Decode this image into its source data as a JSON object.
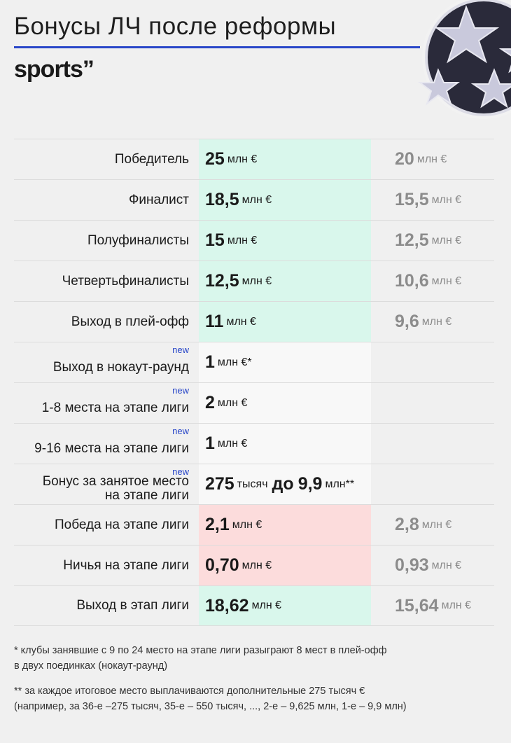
{
  "header": {
    "title": "Бонусы ЛЧ после реформы",
    "brand": "sports”",
    "accent": "#2846c8"
  },
  "rows": [
    {
      "label": "Победитель",
      "new_value": "25",
      "new_unit": "млн €",
      "old_value": "20",
      "old_unit": "млн €",
      "bg": "green"
    },
    {
      "label": "Финалист",
      "new_value": "18,5",
      "new_unit": "млн €",
      "old_value": "15,5",
      "old_unit": "млн €",
      "bg": "green"
    },
    {
      "label": "Полуфиналисты",
      "new_value": "15",
      "new_unit": "млн €",
      "old_value": "12,5",
      "old_unit": "млн €",
      "bg": "green"
    },
    {
      "label": "Четвертьфиналисты",
      "new_value": "12,5",
      "new_unit": "млн €",
      "old_value": "10,6",
      "old_unit": "млн €",
      "bg": "green"
    },
    {
      "label": "Выход в плей-офф",
      "new_value": "11",
      "new_unit": "млн €",
      "old_value": "9,6",
      "old_unit": "млн €",
      "bg": "green"
    },
    {
      "label": "Выход в нокаут-раунд",
      "tag": "new",
      "new_value": "1",
      "new_unit": "млн €*",
      "bg": "white"
    },
    {
      "label": "1-8 места на этапе лиги",
      "tag": "new",
      "new_value": "2",
      "new_unit": "млн €",
      "bg": "white"
    },
    {
      "label": "9-16 места на этапе лиги",
      "tag": "new",
      "new_value": "1",
      "new_unit": "млн €",
      "bg": "white"
    },
    {
      "label_line1": "Бонус за занятое место",
      "label_line2": "на этапе лиги",
      "tag": "new",
      "new_value": "275",
      "new_unit": "тысяч",
      "new_mid": "до",
      "new_value2": "9,9",
      "new_unit2": "млн**",
      "bg": "white"
    },
    {
      "label": "Победа на этапе лиги",
      "new_value": "2,1",
      "new_unit": "млн €",
      "old_value": "2,8",
      "old_unit": "млн €",
      "bg": "pink"
    },
    {
      "label": "Ничья на этапе лиги",
      "new_value": "0,70",
      "new_unit": "млн €",
      "old_value": "0,93",
      "old_unit": "млн €",
      "bg": "pink"
    },
    {
      "label": "Выход в этап лиги",
      "new_value": "18,62",
      "new_unit": "млн €",
      "old_value": "15,64",
      "old_unit": "млн €",
      "bg": "green"
    }
  ],
  "notes": {
    "note1_line1": "* клубы занявшие с 9 по 24 место на этапе лиги разыграют 8 мест в плей-офф",
    "note1_line2": "в двух поединках (нокаут-раунд)",
    "note2_line1": "** за каждое итоговое место выплачиваются дополнительные 275 тысяч €",
    "note2_line2": "(например, за 36-е –275 тысяч, 35-е – 550 тысяч, ..., 2-е – 9,625 млн, 1-е – 9,9 млн)"
  },
  "colors": {
    "green": "#d9f7ec",
    "white": "#f8f8f8",
    "pink": "#fcdcdc",
    "muted": "#8c8c8c"
  }
}
